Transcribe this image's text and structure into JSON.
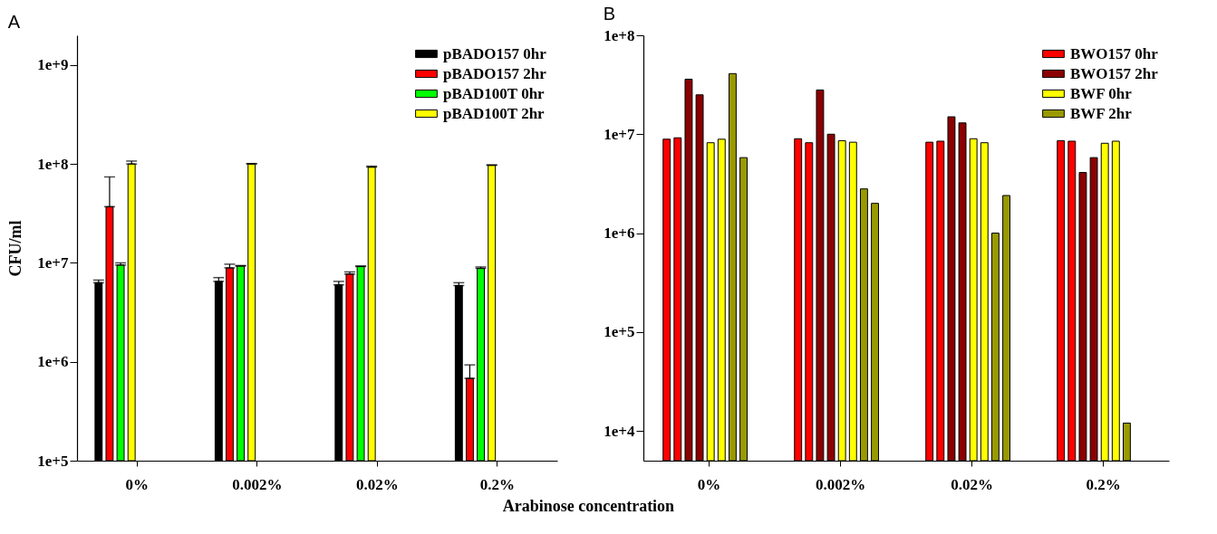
{
  "chart_data": [
    {
      "type": "bar",
      "title": "A",
      "xlabel": "Arabinose concentration",
      "ylabel": "CFU/ml",
      "categories": [
        "0%",
        "0.002%",
        "0.02%",
        "0.2%"
      ],
      "log": true,
      "ylim": [
        100000,
        2000000000
      ],
      "yticks": [
        {
          "value": 100000,
          "label": "1e+5"
        },
        {
          "value": 1000000,
          "label": "1e+6"
        },
        {
          "value": 10000000,
          "label": "1e+7"
        },
        {
          "value": 100000000,
          "label": "1e+8"
        },
        {
          "value": 1000000000,
          "label": "1e+9"
        }
      ],
      "legend": "top right",
      "grid": false,
      "series": [
        {
          "name": "pBADO157 0hr",
          "color": "#000000",
          "values": [
            6300000,
            6500000,
            6000000,
            5900000
          ],
          "errors": [
            [
              6300000,
              6700000
            ],
            [
              6500000,
              7100000
            ],
            [
              6000000,
              6500000
            ],
            [
              5900000,
              6300000
            ]
          ]
        },
        {
          "name": "pBADO157 2hr",
          "color": "#ff0000",
          "values": [
            37000000,
            8900000,
            7700000,
            680000
          ],
          "errors": [
            [
              37000000,
              74000000
            ],
            [
              8900000,
              9700000
            ],
            [
              7700000,
              8100000
            ],
            [
              680000,
              930000
            ]
          ]
        },
        {
          "name": "pBAD100T 0hr",
          "color": "#00ff00",
          "values": [
            9500000,
            9300000,
            9200000,
            8800000
          ],
          "errors": [
            [
              9500000,
              10000000
            ],
            [
              9300000,
              9400000
            ],
            [
              9200000,
              9300000
            ],
            [
              8800000,
              9100000
            ]
          ]
        },
        {
          "name": "pBAD100T 2hr",
          "color": "#ffff00",
          "values": [
            100000000,
            100000000,
            93000000,
            97000000
          ],
          "errors": [
            [
              100000000,
              107000000
            ],
            [
              100000000,
              101000000
            ],
            [
              93000000,
              95000000
            ],
            [
              97000000,
              98000000
            ]
          ]
        }
      ]
    },
    {
      "type": "bar",
      "title": "B",
      "categories": [
        "0%",
        "0.002%",
        "0.02%",
        "0.2%"
      ],
      "log": true,
      "ylim": [
        5000,
        100000000
      ],
      "yticks": [
        {
          "value": 10000,
          "label": "1e+4"
        },
        {
          "value": 100000,
          "label": "1e+5"
        },
        {
          "value": 1000000,
          "label": "1e+6"
        },
        {
          "value": 10000000,
          "label": "1e+7"
        },
        {
          "value": 100000000,
          "label": "1e+8"
        }
      ],
      "legend": "top right",
      "grid": false,
      "series": [
        {
          "name": "BWO157 0hr",
          "color": "#ff0000",
          "values": [
            8900000,
            9000000,
            8300000,
            8600000
          ]
        },
        {
          "color": "#ff0000",
          "values": [
            9200000,
            8200000,
            8500000,
            8500000
          ]
        },
        {
          "name": "BWO157 2hr",
          "color": "#8b0000",
          "values": [
            36000000,
            28000000,
            15000000,
            4100000
          ]
        },
        {
          "color": "#8b0000",
          "values": [
            25000000,
            10000000,
            13000000,
            5800000
          ]
        },
        {
          "name": "BWF 0hr",
          "color": "#ffff00",
          "values": [
            8200000,
            8600000,
            9000000,
            8100000
          ]
        },
        {
          "color": "#ffff00",
          "values": [
            8900000,
            8300000,
            8200000,
            8500000
          ]
        },
        {
          "name": "BWF 2hr",
          "color": "#999900",
          "values": [
            41000000,
            2800000,
            1000000,
            12000
          ]
        },
        {
          "color": "#999900",
          "values": [
            5800000,
            2000000,
            2400000,
            null
          ]
        }
      ]
    }
  ]
}
